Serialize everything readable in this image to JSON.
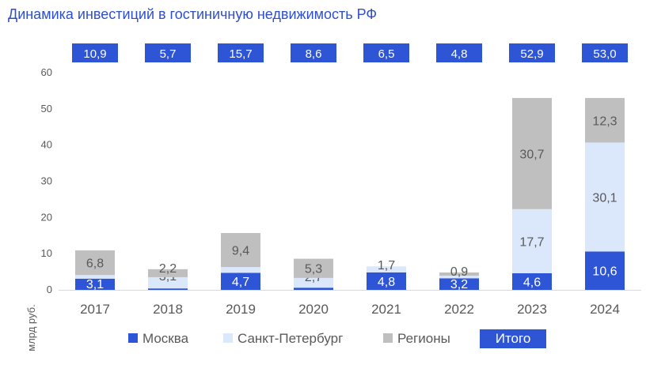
{
  "chart_data": {
    "type": "bar",
    "stacked": true,
    "title": "Динамика инвестиций в гостиничную недвижимость РФ",
    "ylabel": "млрд руб.",
    "ylim": [
      0,
      60
    ],
    "yticks": [
      0,
      10,
      20,
      30,
      40,
      50,
      60
    ],
    "categories": [
      "2017",
      "2018",
      "2019",
      "2020",
      "2021",
      "2022",
      "2023",
      "2024"
    ],
    "series": [
      {
        "name": "Москва",
        "color": "#2e55d6",
        "values": [
          3.1,
          0.4,
          4.7,
          0.6,
          4.8,
          3.2,
          4.6,
          10.6
        ],
        "labels": [
          "3,1",
          "",
          "4,7",
          "",
          "4,8",
          "3,2",
          "4,6",
          "10,6"
        ]
      },
      {
        "name": "Санкт-Петербург",
        "color": "#dbe7fb",
        "values": [
          1.0,
          3.1,
          1.6,
          2.7,
          1.7,
          0.7,
          17.7,
          30.1
        ],
        "labels": [
          "",
          "3,1",
          "",
          "2,7",
          "1,7",
          "",
          "17,7",
          "30,1"
        ]
      },
      {
        "name": "Регионы",
        "color": "#bfbfbf",
        "values": [
          6.8,
          2.2,
          9.4,
          5.3,
          0.0,
          0.9,
          30.7,
          12.3
        ],
        "labels": [
          "6,8",
          "2,2",
          "9,4",
          "5,3",
          "",
          "0,9",
          "30,7",
          "12,3"
        ]
      }
    ],
    "totals": {
      "name": "Итого",
      "color": "#2e55d6",
      "values": [
        10.9,
        5.7,
        15.7,
        8.6,
        6.5,
        4.8,
        52.9,
        53.0
      ],
      "labels": [
        "10,9",
        "5,7",
        "15,7",
        "8,6",
        "6,5",
        "4,8",
        "52,9",
        "53,0"
      ]
    },
    "grid": false,
    "legend": "bottom"
  }
}
